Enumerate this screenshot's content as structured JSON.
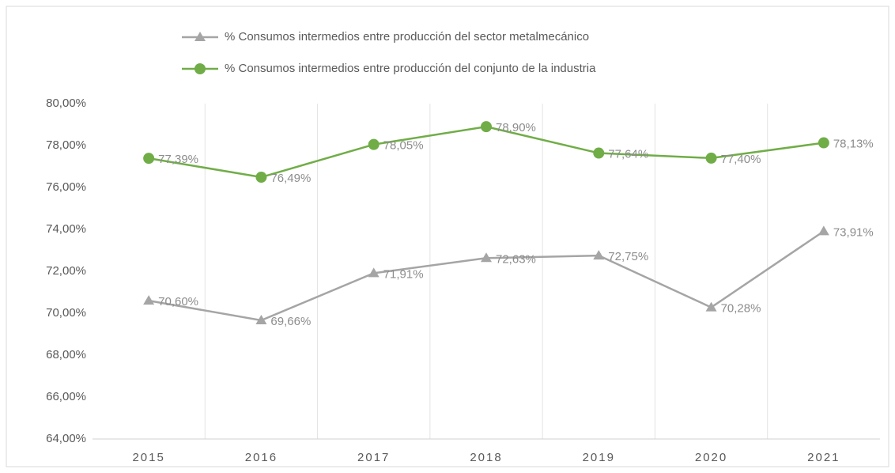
{
  "chart_data": {
    "type": "line",
    "categories": [
      "2015",
      "2016",
      "2017",
      "2018",
      "2019",
      "2020",
      "2021"
    ],
    "series": [
      {
        "name": "% Consumos intermedios entre producción del sector metalmecánico",
        "color": "#a5a5a5",
        "marker": "triangle",
        "values": [
          70.6,
          69.66,
          71.91,
          72.63,
          72.75,
          70.28,
          73.91
        ],
        "value_labels": [
          "70,60%",
          "69,66%",
          "71,91%",
          "72,63%",
          "72,75%",
          "70,28%",
          "73,91%"
        ]
      },
      {
        "name": "% Consumos intermedios entre producción del conjunto de la industria",
        "color": "#70ad47",
        "marker": "circle",
        "values": [
          77.39,
          76.49,
          78.05,
          78.9,
          77.64,
          77.4,
          78.13
        ],
        "value_labels": [
          "77,39%",
          "76,49%",
          "78,05%",
          "78,90%",
          "77,64%",
          "77,40%",
          "78,13%"
        ]
      }
    ],
    "ylim": [
      64,
      80
    ],
    "yticks": [
      {
        "value": 64,
        "label": "64,00%"
      },
      {
        "value": 66,
        "label": "66,00%"
      },
      {
        "value": 68,
        "label": "68,00%"
      },
      {
        "value": 70,
        "label": "70,00%"
      },
      {
        "value": 72,
        "label": "72,00%"
      },
      {
        "value": 74,
        "label": "74,00%"
      },
      {
        "value": 76,
        "label": "76,00%"
      },
      {
        "value": 78,
        "label": "78,00%"
      },
      {
        "value": 80,
        "label": "80,00%"
      }
    ],
    "grid": true,
    "legend": "top"
  }
}
